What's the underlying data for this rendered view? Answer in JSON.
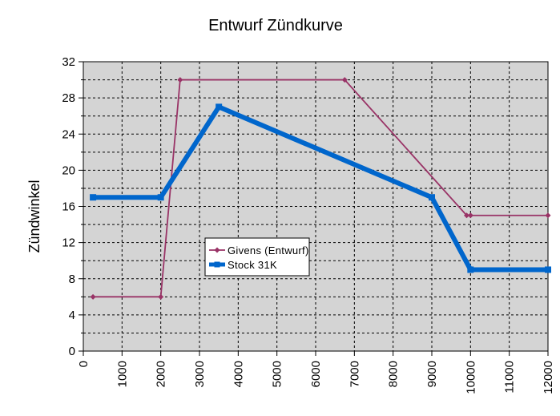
{
  "chart_data": {
    "type": "line",
    "title": "Entwurf Zündkurve",
    "xlabel": "",
    "ylabel": "Zündwinkel",
    "xlim": [
      0,
      12000
    ],
    "ylim": [
      0,
      32
    ],
    "x_ticks": [
      "0",
      "1000",
      "2000",
      "3000",
      "4000",
      "5000",
      "6000",
      "7000",
      "8000",
      "9000",
      "10000",
      "11000",
      "12000"
    ],
    "y_ticks": [
      "0",
      "4",
      "8",
      "12",
      "16",
      "20",
      "24",
      "28",
      "32"
    ],
    "grid": true,
    "plot_background": "#d4d4d4",
    "legend_position": "center-left",
    "series": [
      {
        "name": "Givens (Entwurf)",
        "color": "#993366",
        "marker": "diamond",
        "points": [
          [
            250,
            6
          ],
          [
            2000,
            6
          ],
          [
            2500,
            30
          ],
          [
            6750,
            30
          ],
          [
            9900,
            15
          ],
          [
            10000,
            15
          ],
          [
            12000,
            15
          ]
        ]
      },
      {
        "name": "Stock 31K",
        "color": "#0066cc",
        "marker": "square",
        "points": [
          [
            250,
            17
          ],
          [
            2000,
            17
          ],
          [
            3500,
            27
          ],
          [
            9000,
            17
          ],
          [
            10000,
            9
          ],
          [
            12000,
            9
          ]
        ]
      }
    ]
  }
}
